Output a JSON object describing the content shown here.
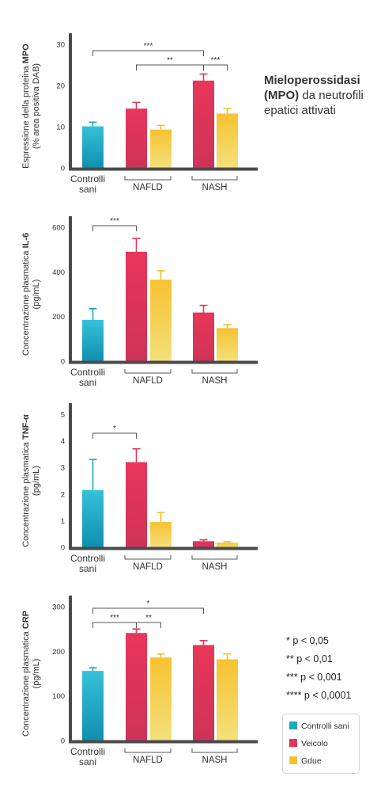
{
  "side_title": {
    "bold": "Mieloperossidasi (MPO)",
    "rest": " da neutrofili epatici attivati"
  },
  "significance_key": [
    "* p < 0,05",
    "** p < 0,01",
    "*** p < 0,001",
    "**** p < 0,0001"
  ],
  "legend": {
    "items": [
      {
        "label": "Controlli sani",
        "color": "#1aa9c4"
      },
      {
        "label": "Veicolo",
        "color": "#e03657"
      },
      {
        "label": "Gdue",
        "color": "#f5c332"
      }
    ]
  },
  "group_labels": {
    "controls": "Controlli sani",
    "nafld": "NAFLD",
    "nash": "NASH"
  },
  "chart_data": [
    {
      "type": "bar",
      "ylabel_line1_prefix": "Espressione della proteina ",
      "ylabel_line1_bold": "MPO",
      "ylabel_line2": "(% area positiva DAB)",
      "ylim": [
        0,
        30
      ],
      "ticks": [
        "0",
        "10",
        "20",
        "30"
      ],
      "tick_values": [
        0,
        10,
        20,
        30
      ],
      "bars": [
        {
          "series": "Controlli sani",
          "value": 10.1,
          "err": 1.0
        },
        {
          "series": "Veicolo",
          "group": "NAFLD",
          "value": 14.4,
          "err": 1.5
        },
        {
          "series": "Gdue",
          "group": "NAFLD",
          "value": 9.3,
          "err": 1.0
        },
        {
          "series": "Veicolo",
          "group": "NASH",
          "value": 21.2,
          "err": 1.6
        },
        {
          "series": "Gdue",
          "group": "NASH",
          "value": 13.2,
          "err": 1.2
        }
      ],
      "brackets": [
        {
          "from": 0,
          "to": 3,
          "label": "***",
          "level": 2
        },
        {
          "from": 1,
          "to": 3,
          "label": "**",
          "level": 1
        },
        {
          "from": 3,
          "to": 4,
          "label": "***",
          "level": 1
        }
      ]
    },
    {
      "type": "bar",
      "ylabel_line1_prefix": "Concentrazione plasmatica ",
      "ylabel_line1_bold": "IL-6",
      "ylabel_line2": "(pg/mL)",
      "ylim": [
        0,
        600
      ],
      "ticks": [
        "0",
        "200",
        "400",
        "600"
      ],
      "tick_values": [
        0,
        200,
        400,
        600
      ],
      "bars": [
        {
          "series": "Controlli sani",
          "value": 185,
          "err": 50
        },
        {
          "series": "Veicolo",
          "group": "NAFLD",
          "value": 490,
          "err": 60
        },
        {
          "series": "Gdue",
          "group": "NAFLD",
          "value": 365,
          "err": 40
        },
        {
          "series": "Veicolo",
          "group": "NASH",
          "value": 218,
          "err": 32
        },
        {
          "series": "Gdue",
          "group": "NASH",
          "value": 148,
          "err": 15
        }
      ],
      "brackets": [
        {
          "from": 0,
          "to": 1,
          "label": "***",
          "level": 1
        }
      ]
    },
    {
      "type": "bar",
      "ylabel_line1_prefix": "Concentrazione plasmatica ",
      "ylabel_line1_bold": "TNF-α",
      "ylabel_line2": "(pg/mL)",
      "ylim": [
        0,
        5
      ],
      "ticks": [
        "0",
        "1",
        "2",
        "3",
        "4",
        "5"
      ],
      "tick_values": [
        0,
        1,
        2,
        3,
        4,
        5
      ],
      "bars": [
        {
          "series": "Controlli sani",
          "value": 2.15,
          "err": 1.15
        },
        {
          "series": "Veicolo",
          "group": "NAFLD",
          "value": 3.2,
          "err": 0.5
        },
        {
          "series": "Gdue",
          "group": "NAFLD",
          "value": 0.95,
          "err": 0.35
        },
        {
          "series": "Veicolo",
          "group": "NASH",
          "value": 0.23,
          "err": 0.05
        },
        {
          "series": "Gdue",
          "group": "NASH",
          "value": 0.17,
          "err": 0.04
        }
      ],
      "brackets": [
        {
          "from": 0,
          "to": 1,
          "label": "*",
          "level": 1
        }
      ]
    },
    {
      "type": "bar",
      "ylabel_line1_prefix": "Concentrazione plasmatica ",
      "ylabel_line1_bold": "CRP",
      "ylabel_line2": "(pg/mL)",
      "ylim": [
        0,
        300
      ],
      "ticks": [
        "0",
        "100",
        "200",
        "300"
      ],
      "tick_values": [
        0,
        100,
        200,
        300
      ],
      "bars": [
        {
          "series": "Controlli sani",
          "value": 156,
          "err": 7
        },
        {
          "series": "Veicolo",
          "group": "NAFLD",
          "value": 241,
          "err": 9
        },
        {
          "series": "Gdue",
          "group": "NAFLD",
          "value": 186,
          "err": 8
        },
        {
          "series": "Veicolo",
          "group": "NASH",
          "value": 214,
          "err": 10
        },
        {
          "series": "Gdue",
          "group": "NASH",
          "value": 182,
          "err": 12
        }
      ],
      "brackets": [
        {
          "from": 0,
          "to": 3,
          "label": "*",
          "level": 2
        },
        {
          "from": 0,
          "to": 1,
          "label": "***",
          "level": 1
        },
        {
          "from": 1,
          "to": 2,
          "label": "**",
          "level": 1
        }
      ]
    }
  ]
}
